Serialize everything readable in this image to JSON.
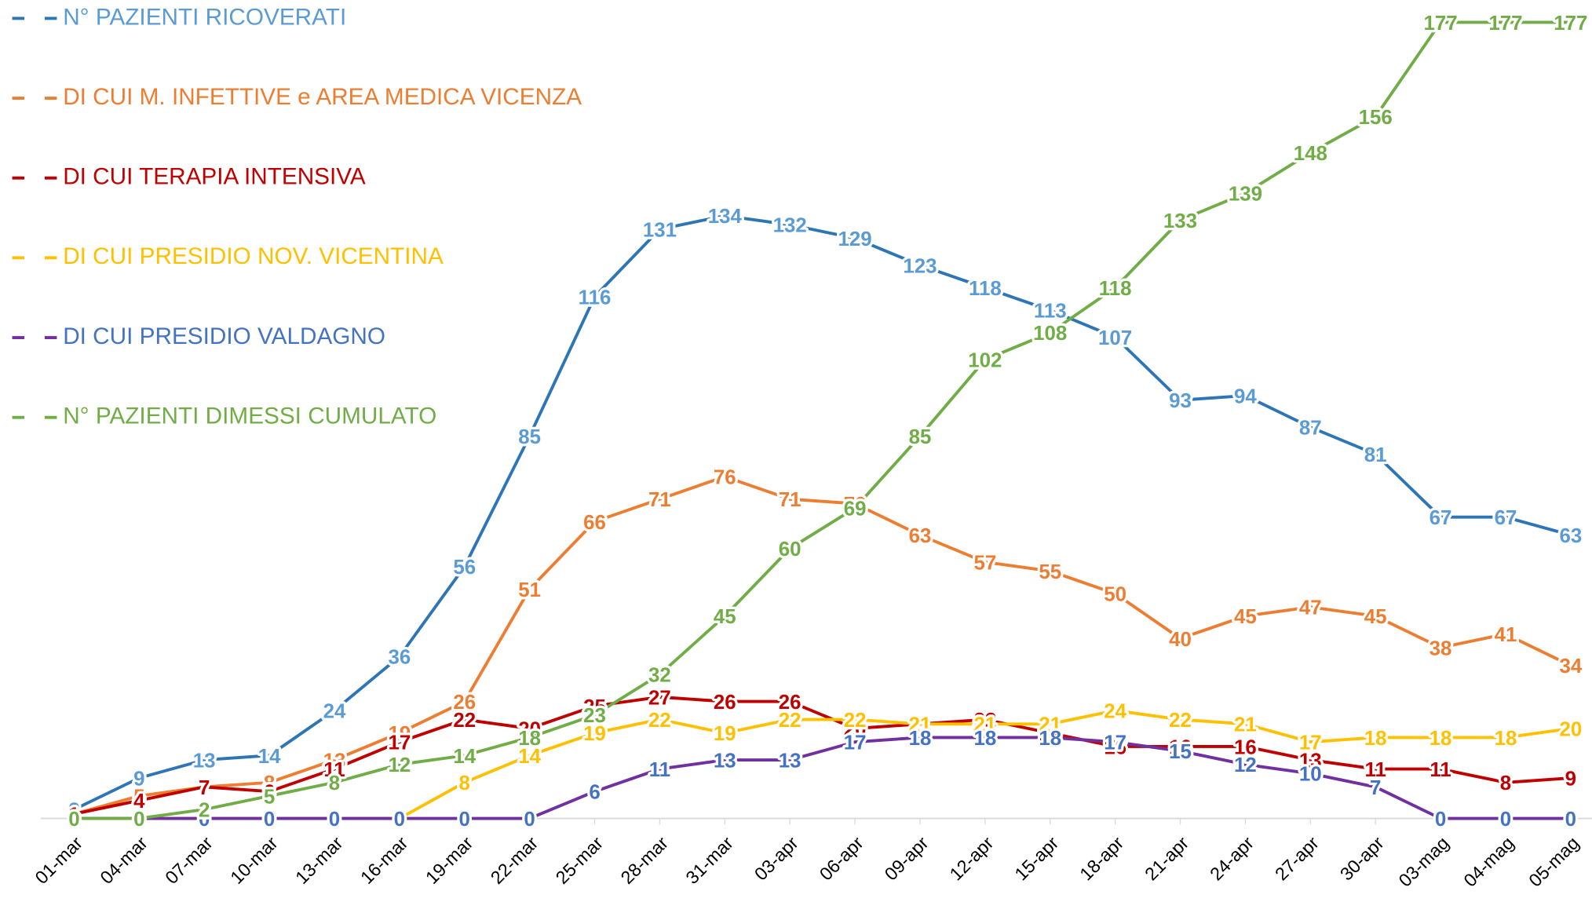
{
  "chart_data": {
    "type": "line",
    "categories": [
      "01-mar",
      "04-mar",
      "07-mar",
      "10-mar",
      "13-mar",
      "16-mar",
      "19-mar",
      "22-mar",
      "25-mar",
      "28-mar",
      "31-mar",
      "03-apr",
      "06-apr",
      "09-apr",
      "12-apr",
      "15-apr",
      "18-apr",
      "21-apr",
      "24-apr",
      "27-apr",
      "30-apr",
      "03-mag",
      "04-mag",
      "05-mag"
    ],
    "ylim": [
      0,
      180
    ],
    "series": [
      {
        "name": "N° PAZIENTI RICOVERATI",
        "color": "#2e75b6",
        "label_color": "#5b9bd5",
        "values": [
          2,
          9,
          13,
          14,
          24,
          36,
          56,
          85,
          116,
          131,
          134,
          132,
          129,
          123,
          118,
          113,
          107,
          93,
          94,
          87,
          81,
          67,
          67,
          63
        ]
      },
      {
        "name": "DI CUI M. INFETTIVE e AREA MEDICA VICENZA",
        "color": "#ed7d31",
        "label_color": "#ed7d31",
        "values": [
          1,
          5,
          7,
          8,
          13,
          19,
          26,
          51,
          66,
          71,
          76,
          71,
          70,
          63,
          57,
          55,
          50,
          40,
          45,
          47,
          45,
          38,
          41,
          34
        ]
      },
      {
        "name": "DI CUI TERAPIA INTENSIVA",
        "color": "#c00000",
        "label_color": "#c00000",
        "values": [
          1,
          4,
          7,
          6,
          11,
          17,
          22,
          20,
          25,
          27,
          26,
          26,
          20,
          21,
          22,
          19,
          16,
          16,
          16,
          13,
          11,
          11,
          8,
          9
        ]
      },
      {
        "name": "DI CUI PRESIDIO NOV. VICENTINA",
        "color": "#ffc000",
        "label_color": "#ffc000",
        "values": [
          0,
          0,
          0,
          0,
          0,
          0,
          8,
          14,
          19,
          22,
          19,
          22,
          22,
          21,
          21,
          21,
          24,
          22,
          21,
          17,
          18,
          18,
          18,
          20
        ]
      },
      {
        "name": "DI CUI PRESIDIO VALDAGNO",
        "color": "#7030a0",
        "label_color": "#4472c4",
        "values": [
          0,
          0,
          0,
          0,
          0,
          0,
          0,
          0,
          6,
          11,
          13,
          13,
          17,
          18,
          18,
          18,
          17,
          15,
          12,
          10,
          7,
          0,
          0,
          0
        ]
      },
      {
        "name": "N° PAZIENTI DIMESSI CUMULATO",
        "color": "#70ad47",
        "label_color": "#70ad47",
        "values": [
          0,
          0,
          2,
          5,
          8,
          12,
          14,
          18,
          23,
          32,
          45,
          60,
          69,
          85,
          102,
          108,
          118,
          133,
          139,
          148,
          156,
          177,
          177,
          177
        ]
      }
    ]
  }
}
